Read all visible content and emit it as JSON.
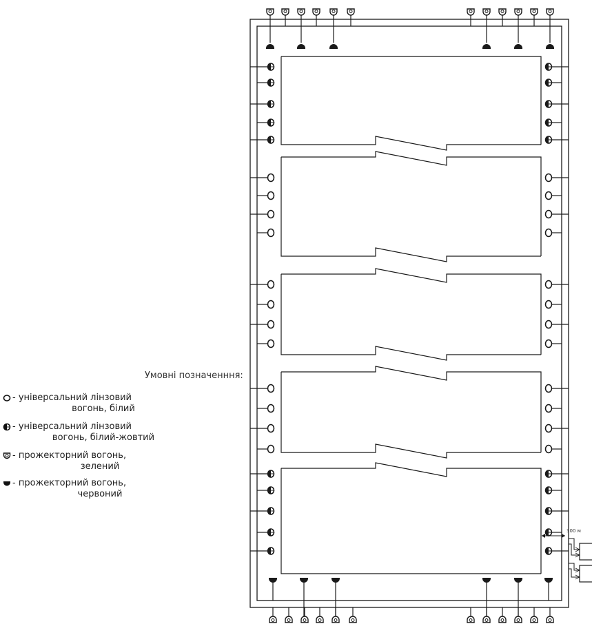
{
  "legend": {
    "title": "Умовні позначенння:",
    "items": [
      {
        "icon": "universal-lens-white-icon",
        "line1": "- універсальний лінзовий",
        "line2": "вогонь, білий"
      },
      {
        "icon": "universal-lens-white-yellow-icon",
        "line1": "- універсальний лінзовий",
        "line2": "вогонь, білий-жовтий"
      },
      {
        "icon": "searchlight-green-icon",
        "line1": "- прожекторний вогонь,",
        "line2": "зелений"
      },
      {
        "icon": "searchlight-red-icon",
        "line1": "- прожекторний вогонь,",
        "line2": "червоний"
      }
    ]
  },
  "annotation": {
    "distance_label": "300 м"
  },
  "colors": {
    "line": "#1a1a1a",
    "background": "#ffffff"
  }
}
